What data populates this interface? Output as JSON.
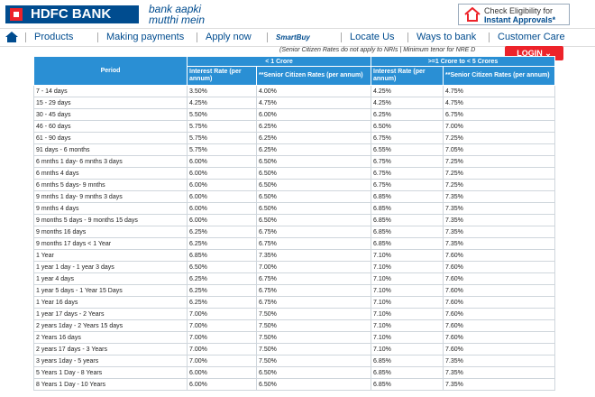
{
  "header": {
    "logo": "HDFC BANK",
    "tagline_1": "bank aapki",
    "tagline_2": "mutthi mein",
    "cta_line_1": "Check Eligibility for",
    "cta_line_2": "Instant Approvals*"
  },
  "nav": {
    "items": [
      "Products",
      "Making payments",
      "Apply now",
      "SmartBuy",
      "Locate Us",
      "Ways to bank",
      "Customer Care"
    ]
  },
  "login": "LOGIN",
  "table": {
    "note": "(Senior Citizen Rates do not apply to NRIs | Minimum tenor for NRE D",
    "period_header": "Period",
    "groups": [
      "< 1 Crore",
      ">=1 Crore to < 5 Crores"
    ],
    "subheaders": [
      "Interest Rate (per annum)",
      "**Senior Citizen Rates (per annum)",
      "Interest Rate (per annum)",
      "**Senior Citizen Rates (per annum)"
    ],
    "rows": [
      [
        "7 - 14 days",
        "3.50%",
        "4.00%",
        "4.25%",
        "4.75%"
      ],
      [
        "15 - 29 days",
        "4.25%",
        "4.75%",
        "4.25%",
        "4.75%"
      ],
      [
        "30 - 45 days",
        "5.50%",
        "6.00%",
        "6.25%",
        "6.75%"
      ],
      [
        "46 - 60 days",
        "5.75%",
        "6.25%",
        "6.50%",
        "7.00%"
      ],
      [
        "61 - 90 days",
        "5.75%",
        "6.25%",
        "6.75%",
        "7.25%"
      ],
      [
        "91 days - 6 months",
        "5.75%",
        "6.25%",
        "6.55%",
        "7.05%"
      ],
      [
        "6 mnths 1 day- 6 mnths 3 days",
        "6.00%",
        "6.50%",
        "6.75%",
        "7.25%"
      ],
      [
        "6 mnths 4 days",
        "6.00%",
        "6.50%",
        "6.75%",
        "7.25%"
      ],
      [
        "6 mnths 5 days- 9 mnths",
        "6.00%",
        "6.50%",
        "6.75%",
        "7.25%"
      ],
      [
        "9 mnths 1 day- 9 mnths 3 days",
        "6.00%",
        "6.50%",
        "6.85%",
        "7.35%"
      ],
      [
        "9 mnths 4 days",
        "6.00%",
        "6.50%",
        "6.85%",
        "7.35%"
      ],
      [
        "9 months 5 days - 9 months 15 days",
        "6.00%",
        "6.50%",
        "6.85%",
        "7.35%"
      ],
      [
        "9 months 16 days",
        "6.25%",
        "6.75%",
        "6.85%",
        "7.35%"
      ],
      [
        "9 months 17 days < 1 Year",
        "6.25%",
        "6.75%",
        "6.85%",
        "7.35%"
      ],
      [
        "1 Year",
        "6.85%",
        "7.35%",
        "7.10%",
        "7.60%"
      ],
      [
        "1 year 1 day - 1 year 3 days",
        "6.50%",
        "7.00%",
        "7.10%",
        "7.60%"
      ],
      [
        "1 year 4 days",
        "6.25%",
        "6.75%",
        "7.10%",
        "7.60%"
      ],
      [
        "1 year 5 days - 1 Year 15 Days",
        "6.25%",
        "6.75%",
        "7.10%",
        "7.60%"
      ],
      [
        "1 Year 16 days",
        "6.25%",
        "6.75%",
        "7.10%",
        "7.60%"
      ],
      [
        "1 year 17 days - 2 Years",
        "7.00%",
        "7.50%",
        "7.10%",
        "7.60%"
      ],
      [
        "2 years 1day - 2 Years 15 days",
        "7.00%",
        "7.50%",
        "7.10%",
        "7.60%"
      ],
      [
        "2 Years 16 days",
        "7.00%",
        "7.50%",
        "7.10%",
        "7.60%"
      ],
      [
        "2 years 17 days - 3 Years",
        "7.00%",
        "7.50%",
        "7.10%",
        "7.60%"
      ],
      [
        "3 years 1day - 5 years",
        "7.00%",
        "7.50%",
        "6.85%",
        "7.35%"
      ],
      [
        "5 Years 1 Day - 8 Years",
        "6.00%",
        "6.50%",
        "6.85%",
        "7.35%"
      ],
      [
        "8 Years 1 Day - 10 Years",
        "6.00%",
        "6.50%",
        "6.85%",
        "7.35%"
      ]
    ]
  }
}
